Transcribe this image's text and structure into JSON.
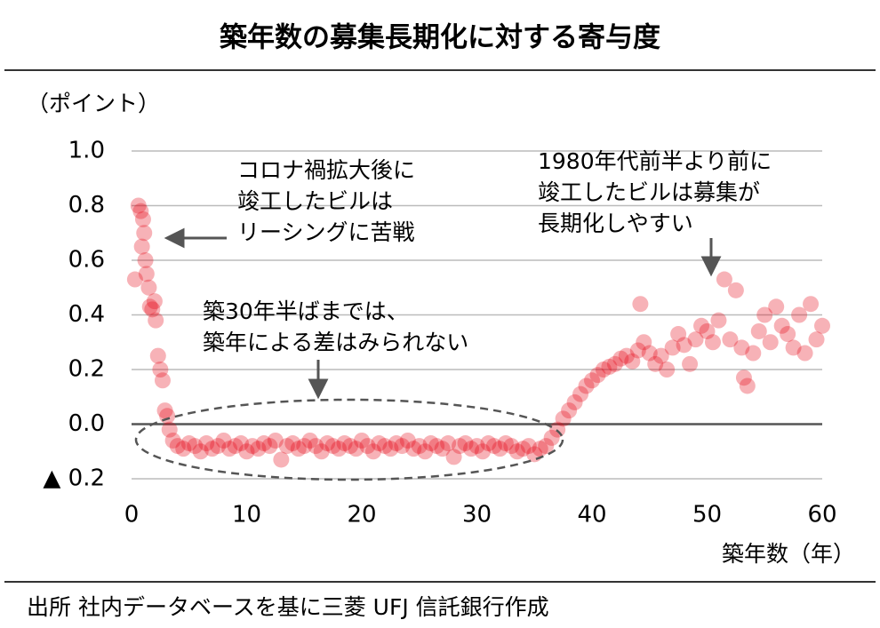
{
  "chart_data": {
    "type": "scatter",
    "title": "築年数の募集長期化に対する寄与度",
    "y_label": "（ポイント）",
    "x_label": "築年数（年）",
    "source": "出所 社内データベースを基に三菱 UFJ 信託銀行作成",
    "color": "#e60012",
    "grid": true,
    "xlim": [
      0,
      60
    ],
    "xticks": [
      0,
      10,
      20,
      30,
      40,
      50,
      60
    ],
    "ylim": [
      -0.2,
      1.0
    ],
    "yticks": [
      {
        "value": 1.0,
        "label": "1.0"
      },
      0.8,
      0.6,
      0.4,
      0.2,
      {
        "value": 0.0,
        "label": "0.0"
      },
      {
        "value": -0.2,
        "label": "▲ 0.2"
      }
    ],
    "annotations": [
      {
        "lines": [
          "コロナ禍拡大後に",
          "竣工したビルは",
          "リーシングに苦戦"
        ]
      },
      {
        "lines": [
          "1980年代前半より前に",
          "竣工したビルは募集が",
          "長期化しやすい"
        ]
      },
      {
        "lines": [
          "築30年半ばまでは、",
          "築年による差はみられない"
        ]
      }
    ],
    "x": [
      0.3,
      0.6,
      0.8,
      1.0,
      1.1,
      0.9,
      1.2,
      1.3,
      1.5,
      1.6,
      1.8,
      2.0,
      2.1,
      2.3,
      2.5,
      2.7,
      2.9,
      3.1,
      3.3,
      3.6,
      4,
      4.5,
      5,
      5.5,
      6,
      6.5,
      7,
      7.5,
      8,
      8.5,
      9,
      9.5,
      10,
      10.5,
      11,
      11.5,
      12,
      12.5,
      13,
      13.5,
      14,
      14.5,
      15,
      15.5,
      16,
      16.5,
      17,
      17.5,
      18,
      18.5,
      19,
      19.5,
      20,
      20.5,
      21,
      21.5,
      22,
      22.5,
      23,
      23.5,
      24,
      24.5,
      25,
      25.5,
      26,
      26.5,
      27,
      27.5,
      28,
      28.5,
      29,
      29.5,
      30,
      30.5,
      31,
      31.5,
      32,
      32.5,
      33,
      33.5,
      34,
      34.5,
      35,
      35.5,
      36,
      36.5,
      37,
      37.5,
      38,
      38.5,
      39,
      39.5,
      40,
      40.5,
      41,
      41.5,
      42,
      42.5,
      43,
      43.5,
      44,
      44.5,
      45,
      45.5,
      46,
      46.5,
      47,
      47.5,
      48,
      48.5,
      49,
      49.5,
      50,
      50.5,
      51,
      51.5,
      52,
      52.5,
      53,
      53.5,
      54,
      54.5,
      55,
      55.5,
      56,
      56.5,
      57,
      57.5,
      58,
      58.5,
      59,
      59.5,
      60,
      44.2,
      53.2
    ],
    "values": [
      0.53,
      0.8,
      0.78,
      0.75,
      0.7,
      0.65,
      0.6,
      0.55,
      0.5,
      0.43,
      0.42,
      0.45,
      0.38,
      0.25,
      0.2,
      0.16,
      0.05,
      0.03,
      -0.02,
      -0.06,
      -0.08,
      -0.09,
      -0.07,
      -0.08,
      -0.1,
      -0.07,
      -0.09,
      -0.08,
      -0.06,
      -0.09,
      -0.08,
      -0.07,
      -0.1,
      -0.08,
      -0.09,
      -0.07,
      -0.08,
      -0.06,
      -0.13,
      -0.08,
      -0.07,
      -0.09,
      -0.08,
      -0.06,
      -0.08,
      -0.1,
      -0.07,
      -0.08,
      -0.09,
      -0.07,
      -0.08,
      -0.09,
      -0.06,
      -0.08,
      -0.1,
      -0.07,
      -0.08,
      -0.09,
      -0.07,
      -0.08,
      -0.06,
      -0.09,
      -0.08,
      -0.1,
      -0.07,
      -0.08,
      -0.09,
      -0.07,
      -0.12,
      -0.08,
      -0.07,
      -0.09,
      -0.08,
      -0.1,
      -0.07,
      -0.08,
      -0.09,
      -0.07,
      -0.08,
      -0.1,
      -0.09,
      -0.08,
      -0.11,
      -0.09,
      -0.08,
      -0.05,
      -0.02,
      0.02,
      0.05,
      0.08,
      0.11,
      0.14,
      0.16,
      0.18,
      0.2,
      0.21,
      0.22,
      0.24,
      0.25,
      0.23,
      0.27,
      0.3,
      0.26,
      0.22,
      0.25,
      0.2,
      0.28,
      0.33,
      0.29,
      0.22,
      0.31,
      0.36,
      0.34,
      0.3,
      0.38,
      0.53,
      0.31,
      0.49,
      0.28,
      0.14,
      0.26,
      0.34,
      0.4,
      0.3,
      0.43,
      0.36,
      0.33,
      0.28,
      0.4,
      0.26,
      0.44,
      0.31,
      0.36,
      0.44,
      0.17
    ]
  }
}
